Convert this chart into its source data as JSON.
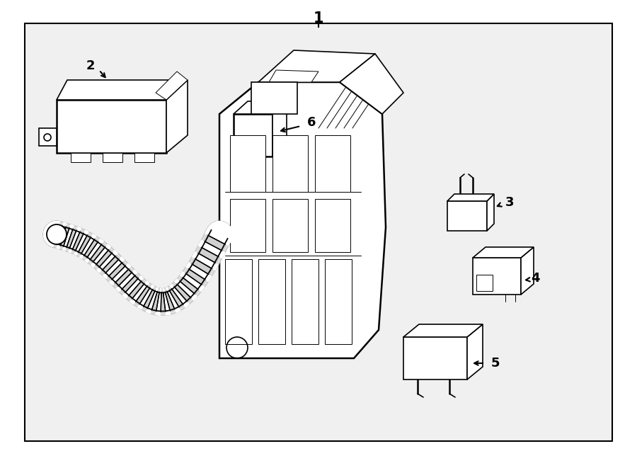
{
  "bg_color": "#ffffff",
  "inner_bg": "#f0f0f0",
  "line_color": "#000000",
  "lw": 1.2,
  "lw_thick": 1.8,
  "lw_thin": 0.7,
  "figsize": [
    9.0,
    6.61
  ],
  "dpi": 100
}
